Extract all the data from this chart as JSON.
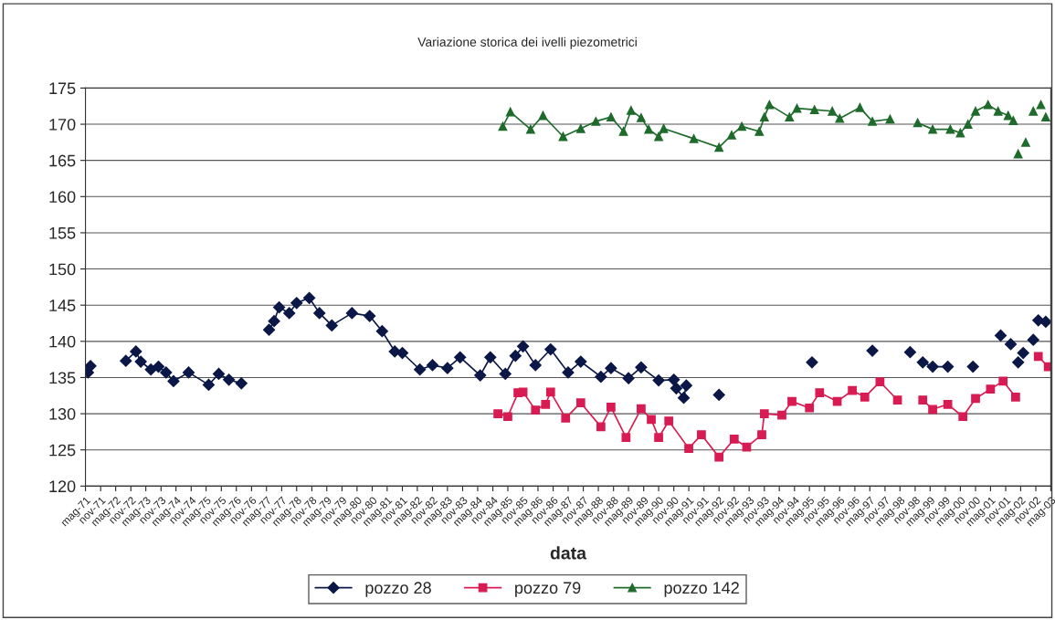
{
  "chart_data": {
    "type": "line",
    "title": "Variazione storica dei ivelli piezometrici",
    "xlabel": "data",
    "xlim": [
      "1971-05",
      "2003-05"
    ],
    "ylim": [
      120,
      175
    ],
    "yticks": [
      120,
      125,
      130,
      135,
      140,
      145,
      150,
      155,
      160,
      165,
      170,
      175
    ],
    "xticks": [
      {
        "value": "1971-05",
        "label": "mag-71"
      },
      {
        "value": "1971-11",
        "label": "nov-71"
      },
      {
        "value": "1972-05",
        "label": "mag-72"
      },
      {
        "value": "1972-11",
        "label": "nov-72"
      },
      {
        "value": "1973-05",
        "label": "mag-73"
      },
      {
        "value": "1973-11",
        "label": "nov-73"
      },
      {
        "value": "1974-05",
        "label": "mag-74"
      },
      {
        "value": "1974-11",
        "label": "nov-74"
      },
      {
        "value": "1975-05",
        "label": "mag-75"
      },
      {
        "value": "1975-11",
        "label": "nov-75"
      },
      {
        "value": "1976-05",
        "label": "mag-76"
      },
      {
        "value": "1976-11",
        "label": "nov-76"
      },
      {
        "value": "1977-05",
        "label": "mag-77"
      },
      {
        "value": "1977-11",
        "label": "nov-77"
      },
      {
        "value": "1978-05",
        "label": "mag-78"
      },
      {
        "value": "1978-11",
        "label": "nov-78"
      },
      {
        "value": "1979-05",
        "label": "mag-79"
      },
      {
        "value": "1979-11",
        "label": "nov-79"
      },
      {
        "value": "1980-05",
        "label": "mag-80"
      },
      {
        "value": "1980-11",
        "label": "nov-80"
      },
      {
        "value": "1981-05",
        "label": "mag-81"
      },
      {
        "value": "1981-11",
        "label": "nov-81"
      },
      {
        "value": "1982-05",
        "label": "mag-82"
      },
      {
        "value": "1982-11",
        "label": "nov-82"
      },
      {
        "value": "1983-05",
        "label": "mag-83"
      },
      {
        "value": "1983-11",
        "label": "nov-83"
      },
      {
        "value": "1984-05",
        "label": "mag-84"
      },
      {
        "value": "1984-11",
        "label": "nov-84"
      },
      {
        "value": "1985-05",
        "label": "mag-85"
      },
      {
        "value": "1985-11",
        "label": "nov-85"
      },
      {
        "value": "1986-05",
        "label": "mag-86"
      },
      {
        "value": "1986-11",
        "label": "nov-86"
      },
      {
        "value": "1987-05",
        "label": "mag-87"
      },
      {
        "value": "1987-11",
        "label": "nov-87"
      },
      {
        "value": "1988-05",
        "label": "mag-88"
      },
      {
        "value": "1988-11",
        "label": "nov-88"
      },
      {
        "value": "1989-05",
        "label": "mag-89"
      },
      {
        "value": "1989-11",
        "label": "nov-89"
      },
      {
        "value": "1990-05",
        "label": "mag-90"
      },
      {
        "value": "1990-11",
        "label": "nov-90"
      },
      {
        "value": "1991-05",
        "label": "mag-91"
      },
      {
        "value": "1991-11",
        "label": "nov-91"
      },
      {
        "value": "1992-05",
        "label": "mag-92"
      },
      {
        "value": "1992-11",
        "label": "nov-92"
      },
      {
        "value": "1993-05",
        "label": "mag-93"
      },
      {
        "value": "1993-11",
        "label": "nov-93"
      },
      {
        "value": "1994-05",
        "label": "mag-94"
      },
      {
        "value": "1994-11",
        "label": "nov-94"
      },
      {
        "value": "1995-05",
        "label": "mag-95"
      },
      {
        "value": "1995-11",
        "label": "nov-95"
      },
      {
        "value": "1996-05",
        "label": "mag-96"
      },
      {
        "value": "1996-11",
        "label": "nov-96"
      },
      {
        "value": "1997-05",
        "label": "mag-97"
      },
      {
        "value": "1997-11",
        "label": "nov-97"
      },
      {
        "value": "1998-05",
        "label": "mag-98"
      },
      {
        "value": "1998-11",
        "label": "nov-98"
      },
      {
        "value": "1999-05",
        "label": "mag-99"
      },
      {
        "value": "1999-11",
        "label": "nov-99"
      },
      {
        "value": "2000-05",
        "label": "mag-00"
      },
      {
        "value": "2000-11",
        "label": "nov-00"
      },
      {
        "value": "2001-05",
        "label": "mag-01"
      },
      {
        "value": "2001-11",
        "label": "nov-01"
      },
      {
        "value": "2002-05",
        "label": "mag-02"
      },
      {
        "value": "2002-11",
        "label": "nov-02"
      },
      {
        "value": "2003-05",
        "label": "mag-03"
      }
    ],
    "grid": "y",
    "legend": "bottom",
    "line_style": "solid",
    "series": [
      {
        "name": "pozzo 28",
        "color": "#0b1847",
        "marker": "diamond",
        "x": [
          "1971-06",
          "1971-07",
          "1972-01",
          "1972-09",
          "1973-01",
          "1973-03",
          "1973-07",
          "1973-10",
          "1974-01",
          "1974-04",
          "1974-10",
          "1975-06",
          "1975-10",
          "1976-02",
          "1976-07",
          "1977-01",
          "1977-06",
          "1977-08",
          "1977-10",
          "1978-02",
          "1978-05",
          "1978-10",
          "1979-02",
          "1979-07",
          "1980-03",
          "1980-10",
          "1981-03",
          "1981-08",
          "1981-11",
          "1982-06",
          "1982-11",
          "1983-05",
          "1983-10",
          "1984-06",
          "1984-10",
          "1985-04",
          "1985-08",
          "1985-11",
          "1986-04",
          "1986-10",
          "1987-05",
          "1987-10",
          "1988-06",
          "1988-10",
          "1989-05",
          "1989-10",
          "1990-05",
          "1990-11",
          "1990-12",
          "1991-03",
          "1991-04",
          "1991-10",
          "1992-05",
          "1993-01",
          "1995-06",
          "1996-01",
          "1997-06",
          "1998-01",
          "1998-09",
          "1998-12",
          "1999-02",
          "1999-06",
          "1999-12",
          "2000-04",
          "2000-10",
          "2001-03",
          "2001-09",
          "2001-11",
          "2002-01",
          "2002-03",
          "2002-04",
          "2002-05",
          "2002-06",
          "2002-08",
          "2002-10",
          "2002-11",
          "2002-12",
          "2003-03"
        ],
        "values": [
          135.7,
          136.6,
          null,
          137.3,
          138.6,
          137.2,
          136.1,
          136.5,
          135.7,
          134.5,
          135.7,
          134.0,
          135.5,
          134.7,
          134.2,
          null,
          141.6,
          142.8,
          144.7,
          143.9,
          145.3,
          146.0,
          143.9,
          142.2,
          143.9,
          143.5,
          141.4,
          138.6,
          138.4,
          136.1,
          136.7,
          136.3,
          137.8,
          135.3,
          137.8,
          135.5,
          138.0,
          139.3,
          136.7,
          138.9,
          135.7,
          137.2,
          135.1,
          136.3,
          134.9,
          136.4,
          134.6,
          134.7,
          133.5,
          132.2,
          133.9,
          null,
          132.6,
          null,
          137.1,
          null,
          138.7,
          null,
          138.5,
          null,
          137.1,
          136.5,
          136.5,
          null,
          136.5,
          null,
          140.8,
          null,
          139.6,
          null,
          137.1,
          null,
          138.4,
          null,
          140.2,
          null,
          142.9,
          142.7
        ]
      },
      {
        "name": "pozzo 79",
        "color": "#d81b52",
        "marker": "square",
        "x": [
          "1985-01",
          "1985-05",
          "1985-09",
          "1985-11",
          "1986-04",
          "1986-08",
          "1986-10",
          "1987-04",
          "1987-10",
          "1988-06",
          "1988-10",
          "1989-04",
          "1989-10",
          "1990-02",
          "1990-05",
          "1990-09",
          "1991-05",
          "1991-10",
          "1992-05",
          "1992-11",
          "1993-04",
          "1993-10",
          "1993-11",
          "1994-06",
          "1994-10",
          "1995-05",
          "1995-09",
          "1996-04",
          "1996-10",
          "1997-03",
          "1997-09",
          "1998-04",
          "1998-10",
          "1999-02",
          "1999-06",
          "1999-12",
          "2000-06",
          "2000-11",
          "2001-05",
          "2001-10",
          "2002-03",
          "2002-08",
          "2002-12",
          "2003-04"
        ],
        "values": [
          130.0,
          129.6,
          132.9,
          133.0,
          130.5,
          131.3,
          133.0,
          129.4,
          131.5,
          128.2,
          130.9,
          126.7,
          130.7,
          129.2,
          126.7,
          129.0,
          125.2,
          127.1,
          124.0,
          126.5,
          125.4,
          127.1,
          130.0,
          129.8,
          131.7,
          130.8,
          132.9,
          131.7,
          133.2,
          132.3,
          134.4,
          131.9,
          null,
          131.9,
          130.6,
          131.3,
          129.6,
          132.1,
          133.4,
          134.5,
          132.3,
          null,
          137.9,
          136.5
        ]
      },
      {
        "name": "pozzo 142",
        "color": "#1e6b2c",
        "marker": "triangle",
        "x": [
          "1985-03",
          "1985-06",
          "1986-02",
          "1986-07",
          "1987-03",
          "1987-10",
          "1988-04",
          "1988-10",
          "1989-03",
          "1989-06",
          "1989-10",
          "1990-01",
          "1990-05",
          "1990-07",
          "1991-07",
          "1992-05",
          "1992-10",
          "1993-02",
          "1993-09",
          "1993-11",
          "1994-01",
          "1994-09",
          "1994-12",
          "1995-07",
          "1996-02",
          "1996-05",
          "1997-01",
          "1997-06",
          "1998-01",
          "1998-07",
          "1998-12",
          "1999-06",
          "2000-01",
          "2000-05",
          "2000-08",
          "2000-11",
          "2001-04",
          "2001-08",
          "2001-12",
          "2002-02",
          "2002-03",
          "2002-04",
          "2002-05",
          "2002-07",
          "2002-08",
          "2002-10",
          "2002-11",
          "2003-01",
          "2003-02",
          "2003-03"
        ],
        "values": [
          169.7,
          171.7,
          169.3,
          171.2,
          168.3,
          169.4,
          170.4,
          171.0,
          169.0,
          171.9,
          170.9,
          169.3,
          168.3,
          169.4,
          168.0,
          166.8,
          168.5,
          169.7,
          169.0,
          171.0,
          172.7,
          171.0,
          172.2,
          172.0,
          171.8,
          170.8,
          172.3,
          170.4,
          170.7,
          null,
          170.2,
          169.3,
          169.3,
          168.8,
          170.0,
          171.8,
          172.7,
          171.8,
          171.2,
          170.5,
          null,
          165.9,
          null,
          167.5,
          null,
          171.8,
          null,
          172.7,
          null,
          171.0
        ]
      }
    ]
  }
}
